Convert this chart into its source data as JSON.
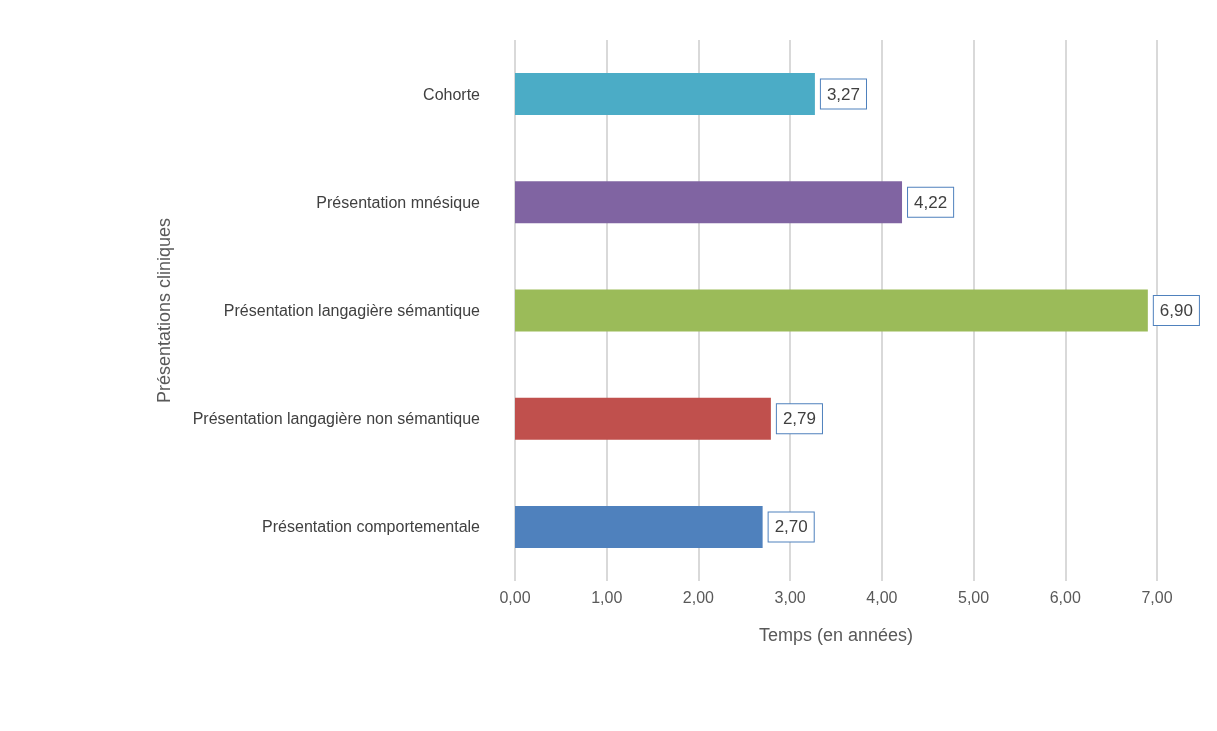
{
  "chart_data": {
    "type": "bar",
    "orientation": "horizontal",
    "xlabel": "Temps (en années)",
    "ylabel": "Présentations cliniques",
    "categories": [
      "Cohorte",
      "Présentation mnésique",
      "Présentation langagière sémantique",
      "Présentation langagière non sémantique",
      "Présentation comportementale"
    ],
    "values": [
      3.27,
      4.22,
      6.9,
      2.79,
      2.7
    ],
    "colors": [
      "#4bacc6",
      "#8064a2",
      "#9bbb59",
      "#c0504d",
      "#4f81bd"
    ],
    "value_labels": [
      "3,27",
      "4,22",
      "6,90",
      "2,79",
      "2,70"
    ],
    "xlim": [
      0,
      7
    ],
    "xticks": [
      {
        "value": 0,
        "label": "0,00"
      },
      {
        "value": 1,
        "label": "1,00"
      },
      {
        "value": 2,
        "label": "2,00"
      },
      {
        "value": 3,
        "label": "3,00"
      },
      {
        "value": 4,
        "label": "4,00"
      },
      {
        "value": 5,
        "label": "5,00"
      },
      {
        "value": 6,
        "label": "6,00"
      },
      {
        "value": 7,
        "label": "7,00"
      }
    ],
    "grid": "x"
  }
}
